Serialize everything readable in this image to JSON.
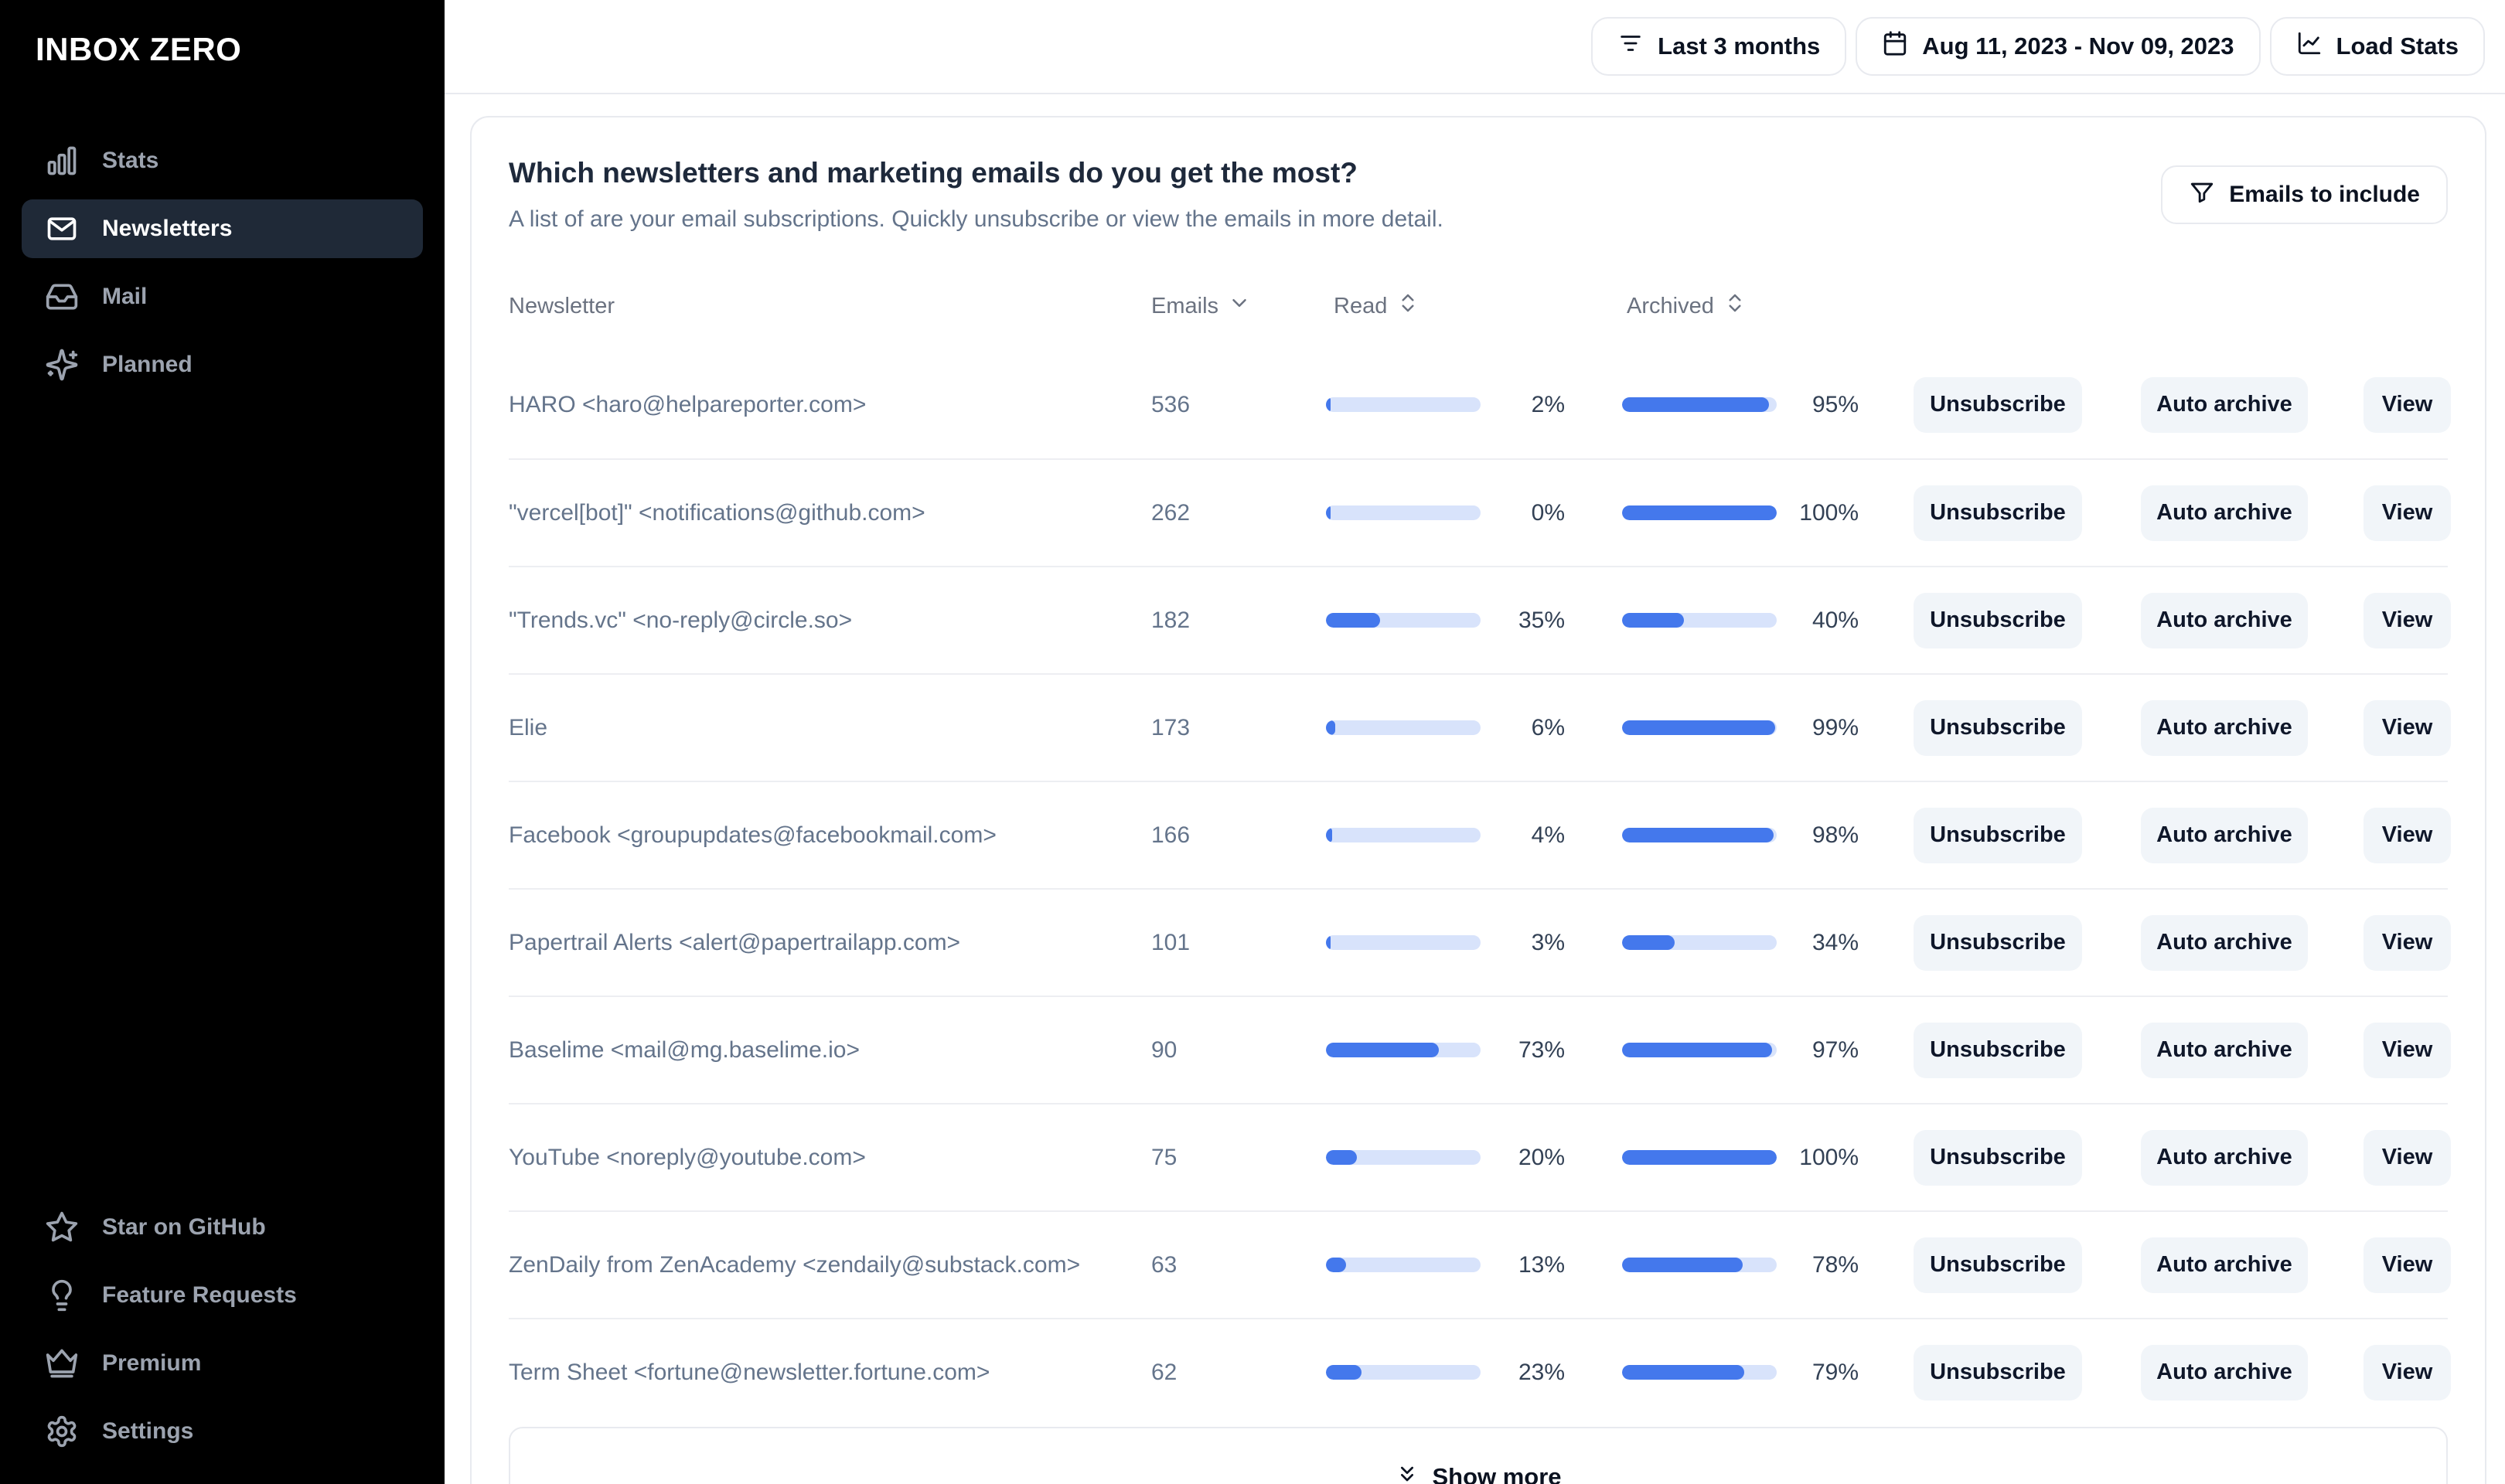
{
  "brand": {
    "logo": "INBOX ZERO"
  },
  "colors": {
    "accent_blue": "#4478ec",
    "bar_track": "#d8e3fb",
    "sidebar_bg": "#000000",
    "active_item_bg": "#1f2937"
  },
  "sidebar": {
    "nav": [
      {
        "label": "Stats",
        "icon": "bar-chart",
        "active": false
      },
      {
        "label": "Newsletters",
        "icon": "mail",
        "active": true
      },
      {
        "label": "Mail",
        "icon": "inbox",
        "active": false
      },
      {
        "label": "Planned",
        "icon": "sparkles",
        "active": false
      }
    ],
    "footer_nav": [
      {
        "label": "Star on GitHub",
        "icon": "star",
        "active": false
      },
      {
        "label": "Feature Requests",
        "icon": "lightbulb",
        "active": false
      },
      {
        "label": "Premium",
        "icon": "crown",
        "active": false
      },
      {
        "label": "Settings",
        "icon": "gear",
        "active": false
      }
    ]
  },
  "topbar": {
    "range_button": "Last 3 months",
    "date_button": "Aug 11, 2023 - Nov 09, 2023",
    "load_button": "Load Stats"
  },
  "panel": {
    "title": "Which newsletters and marketing emails do you get the most?",
    "subtitle": "A list of are your email subscriptions. Quickly unsubscribe or view the emails in more detail.",
    "filter_button": "Emails to include",
    "show_more": "Show more"
  },
  "table": {
    "columns": {
      "newsletter": "Newsletter",
      "emails": "Emails",
      "read": "Read",
      "archived": "Archived"
    },
    "actions": {
      "unsubscribe": "Unsubscribe",
      "auto_archive": "Auto archive",
      "view": "View"
    },
    "rows": [
      {
        "newsletter": "HARO <haro@helpareporter.com>",
        "emails": "536",
        "read_pct": 2,
        "archived_pct": 95
      },
      {
        "newsletter": "\"vercel[bot]\" <notifications@github.com>",
        "emails": "262",
        "read_pct": 0,
        "archived_pct": 100
      },
      {
        "newsletter": "\"Trends.vc\" <no-reply@circle.so>",
        "emails": "182",
        "read_pct": 35,
        "archived_pct": 40
      },
      {
        "newsletter": "Elie",
        "emails": "173",
        "read_pct": 6,
        "archived_pct": 99
      },
      {
        "newsletter": "Facebook <groupupdates@facebookmail.com>",
        "emails": "166",
        "read_pct": 4,
        "archived_pct": 98
      },
      {
        "newsletter": "Papertrail Alerts <alert@papertrailapp.com>",
        "emails": "101",
        "read_pct": 3,
        "archived_pct": 34
      },
      {
        "newsletter": "Baselime <mail@mg.baselime.io>",
        "emails": "90",
        "read_pct": 73,
        "archived_pct": 97
      },
      {
        "newsletter": "YouTube <noreply@youtube.com>",
        "emails": "75",
        "read_pct": 20,
        "archived_pct": 100
      },
      {
        "newsletter": "ZenDaily from ZenAcademy <zendaily@substack.com>",
        "emails": "63",
        "read_pct": 13,
        "archived_pct": 78
      },
      {
        "newsletter": "Term Sheet <fortune@newsletter.fortune.com>",
        "emails": "62",
        "read_pct": 23,
        "archived_pct": 79
      }
    ]
  }
}
